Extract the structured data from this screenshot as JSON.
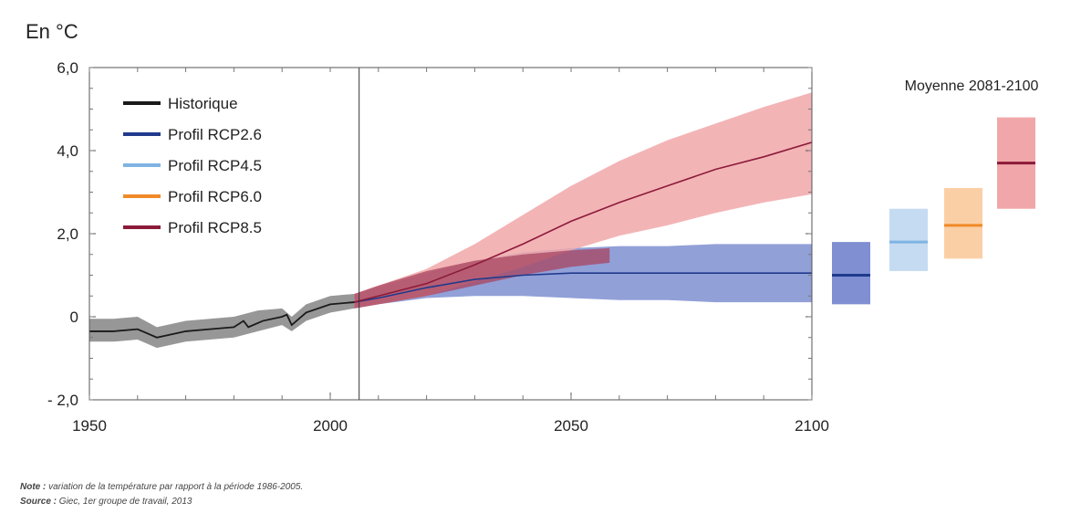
{
  "chart_data": {
    "type": "line",
    "unit_label": "En °C",
    "x_ticks": [
      "1950",
      "2000",
      "2050",
      "2100"
    ],
    "y_ticks": [
      "6,0",
      "4,0",
      "2,0",
      "0",
      "- 2,0"
    ],
    "y_tick_values": [
      6,
      4,
      2,
      0,
      -2
    ],
    "xlim": [
      1950,
      2100
    ],
    "ylim": [
      -2,
      6
    ],
    "divider_year": 2006,
    "series": [
      {
        "name": "Historique",
        "color": "#1a1a1a",
        "band_color": "#8c8c8c",
        "points": [
          [
            1950,
            -0.35
          ],
          [
            1955,
            -0.35
          ],
          [
            1960,
            -0.3
          ],
          [
            1962,
            -0.4
          ],
          [
            1964,
            -0.5
          ],
          [
            1966,
            -0.45
          ],
          [
            1970,
            -0.35
          ],
          [
            1975,
            -0.3
          ],
          [
            1980,
            -0.25
          ],
          [
            1982,
            -0.1
          ],
          [
            1983,
            -0.25
          ],
          [
            1986,
            -0.1
          ],
          [
            1990,
            0.0
          ],
          [
            1991,
            0.05
          ],
          [
            1992,
            -0.2
          ],
          [
            1995,
            0.1
          ],
          [
            2000,
            0.3
          ],
          [
            2005,
            0.35
          ]
        ],
        "band": [
          [
            1950,
            -0.6,
            -0.05
          ],
          [
            1955,
            -0.6,
            -0.05
          ],
          [
            1960,
            -0.55,
            0.0
          ],
          [
            1964,
            -0.75,
            -0.25
          ],
          [
            1970,
            -0.6,
            -0.1
          ],
          [
            1980,
            -0.5,
            0.0
          ],
          [
            1985,
            -0.35,
            0.15
          ],
          [
            1990,
            -0.2,
            0.2
          ],
          [
            1992,
            -0.35,
            0.0
          ],
          [
            1995,
            -0.1,
            0.3
          ],
          [
            2000,
            0.1,
            0.5
          ],
          [
            2005,
            0.2,
            0.55
          ]
        ]
      },
      {
        "name": "Profil RCP2.6",
        "color": "#203a8c",
        "band_color": "#7f8fd1",
        "points": [
          [
            2005,
            0.35
          ],
          [
            2010,
            0.45
          ],
          [
            2020,
            0.7
          ],
          [
            2030,
            0.9
          ],
          [
            2040,
            1.0
          ],
          [
            2050,
            1.05
          ],
          [
            2060,
            1.05
          ],
          [
            2070,
            1.05
          ],
          [
            2080,
            1.05
          ],
          [
            2090,
            1.05
          ],
          [
            2100,
            1.05
          ]
        ],
        "band": [
          [
            2005,
            0.2,
            0.55
          ],
          [
            2010,
            0.3,
            0.7
          ],
          [
            2020,
            0.45,
            1.05
          ],
          [
            2030,
            0.5,
            1.35
          ],
          [
            2040,
            0.5,
            1.55
          ],
          [
            2050,
            0.45,
            1.65
          ],
          [
            2060,
            0.4,
            1.7
          ],
          [
            2070,
            0.4,
            1.7
          ],
          [
            2080,
            0.35,
            1.75
          ],
          [
            2090,
            0.35,
            1.75
          ],
          [
            2100,
            0.35,
            1.75
          ]
        ]
      },
      {
        "name": "Profil RCP4.5",
        "color": "#7fb4e3",
        "band_color": "#c5dbf2"
      },
      {
        "name": "Profil RCP6.0",
        "color": "#f08a28",
        "band_color": "#fbcfa5"
      },
      {
        "name": "Profil RCP8.5",
        "color": "#8c1b3a",
        "band_color": "#f1a7a9",
        "points": [
          [
            2005,
            0.35
          ],
          [
            2010,
            0.5
          ],
          [
            2020,
            0.8
          ],
          [
            2030,
            1.25
          ],
          [
            2040,
            1.75
          ],
          [
            2050,
            2.3
          ],
          [
            2060,
            2.75
          ],
          [
            2070,
            3.15
          ],
          [
            2080,
            3.55
          ],
          [
            2090,
            3.85
          ],
          [
            2100,
            4.2
          ]
        ],
        "band": [
          [
            2005,
            0.2,
            0.55
          ],
          [
            2010,
            0.3,
            0.75
          ],
          [
            2020,
            0.5,
            1.15
          ],
          [
            2030,
            0.85,
            1.75
          ],
          [
            2040,
            1.2,
            2.45
          ],
          [
            2050,
            1.6,
            3.15
          ],
          [
            2060,
            1.95,
            3.75
          ],
          [
            2070,
            2.2,
            4.25
          ],
          [
            2080,
            2.5,
            4.65
          ],
          [
            2090,
            2.75,
            5.05
          ],
          [
            2100,
            2.95,
            5.4
          ]
        ]
      }
    ],
    "overlap_band": {
      "color": "#a8445f",
      "band": [
        [
          2005,
          0.2,
          0.55
        ],
        [
          2010,
          0.3,
          0.75
        ],
        [
          2020,
          0.5,
          1.1
        ],
        [
          2030,
          0.75,
          1.35
        ],
        [
          2040,
          1.0,
          1.5
        ],
        [
          2050,
          1.2,
          1.6
        ],
        [
          2058,
          1.3,
          1.65
        ]
      ]
    },
    "side_panel": {
      "title": "Moyenne 2081-2100",
      "bars": [
        {
          "name": "Profil RCP2.6",
          "mean": 1.0,
          "low": 0.3,
          "high": 1.8,
          "fill": "#7f8fd1",
          "line": "#203a8c"
        },
        {
          "name": "Profil RCP4.5",
          "mean": 1.8,
          "low": 1.1,
          "high": 2.6,
          "fill": "#c5dbf2",
          "line": "#7fb4e3"
        },
        {
          "name": "Profil RCP6.0",
          "mean": 2.2,
          "low": 1.4,
          "high": 3.1,
          "fill": "#fbcfa5",
          "line": "#f08a28"
        },
        {
          "name": "Profil RCP8.5",
          "mean": 3.7,
          "low": 2.6,
          "high": 4.8,
          "fill": "#f1a7a9",
          "line": "#8c1b3a"
        }
      ]
    },
    "legend_position": "top-left"
  },
  "notes": {
    "note_label": "Note :",
    "note_text": " variation de la température par rapport à la période 1986-2005.",
    "source_label": "Source :",
    "source_text": " Giec, 1er groupe de travail, 2013"
  }
}
